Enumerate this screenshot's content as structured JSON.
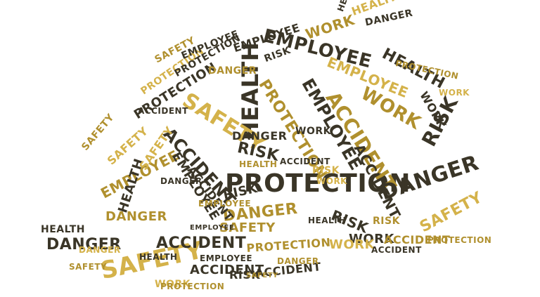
{
  "image": {
    "subject": "hard-hat",
    "colors": {
      "dark": "#3a3527",
      "brown": "#6e5a23",
      "gold": "#b0902e",
      "light_gold": "#d4b24a"
    }
  },
  "words": [
    "PROTECTION",
    "EMPLOYEE",
    "HEALTH",
    "ACCIDENT",
    "SAFETY",
    "DANGER",
    "WORK",
    "RISK",
    "EMPLOYEE",
    "ACCIDENT",
    "PROTECTION",
    "SAFETY",
    "DANGER",
    "ACCIDENT",
    "EMPLOYEE",
    "RISK",
    "WORK",
    "DANGER",
    "HEALTH",
    "SAFETY",
    "ACCIDENT",
    "PROTECTION",
    "EMPLOYEE",
    "RISK",
    "SAFETY",
    "ACCIDENT",
    "WORK",
    "DANGER",
    "PROTECTION",
    "HEALTH",
    "EMPLOYEE",
    "RISK",
    "ACCIDENT",
    "SAFETY",
    "WORK",
    "DANGER",
    "PROTECTION",
    "HEALTH",
    "EMPLOYEE",
    "SAFETY",
    "ACCIDENT",
    "WORK",
    "DANGER",
    "HEALTH",
    "SAFETY",
    "EMPLOYEE",
    "PROTECTION",
    "RISK",
    "ACCIDENT",
    "DANGER",
    "WORK",
    "HEALTH",
    "SAFETY",
    "EMPLOYEE",
    "PROTECTION",
    "RISK",
    "ACCIDENT",
    "WORK",
    "DANGER",
    "HEALTH",
    "RISK",
    "SAFETY",
    "ACCIDENT",
    "PROTECTION",
    "WORK",
    "DANGER",
    "EMPLOYEE",
    "HEALTH",
    "RISK",
    "ACCIDENT",
    "SAFETY",
    "WORK",
    "HEALTH",
    "DANGER",
    "EMPLOYEE",
    "PROTECTION"
  ]
}
